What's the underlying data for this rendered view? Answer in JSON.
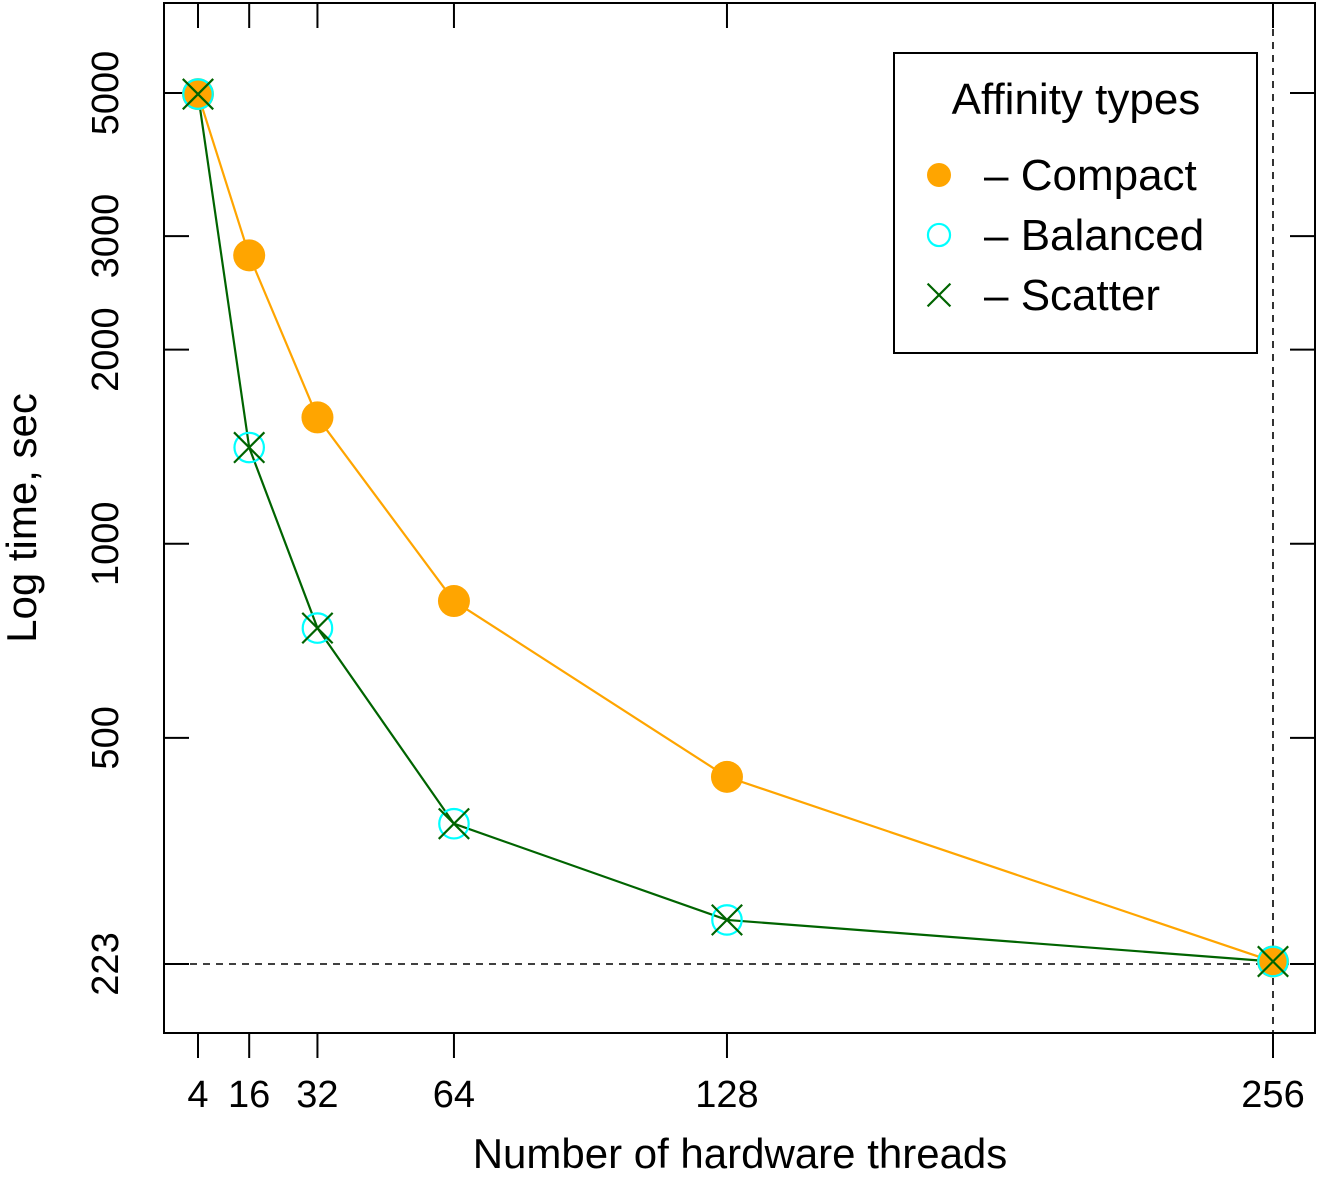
{
  "chart_data": {
    "type": "line",
    "xlabel": "Number of hardware threads",
    "ylabel": "Log time, sec",
    "y_scale": "log",
    "xlim": [
      0,
      260
    ],
    "ylim": [
      185,
      6600
    ],
    "x": [
      4,
      16,
      32,
      64,
      128,
      256
    ],
    "x_tick_labels": [
      "4",
      "16",
      "32",
      "64",
      "128",
      "256"
    ],
    "y_ticks": [
      223,
      500,
      1000,
      2000,
      3000,
      5000
    ],
    "y_tick_labels": [
      "223",
      "500",
      "1000",
      "2000",
      "3000",
      "5000"
    ],
    "reference_lines": {
      "x": 256,
      "y": 223,
      "style": "dashed"
    },
    "legend": {
      "title": "Affinity types",
      "position": "top-right"
    },
    "series": [
      {
        "name": "Compact",
        "label": "– Compact",
        "marker": "filled-circle",
        "color": "#FFA500",
        "values": [
          4980,
          2800,
          1570,
          815,
          435,
          225
        ]
      },
      {
        "name": "Balanced",
        "label": "– Balanced",
        "marker": "open-circle",
        "color": "#00FFFF",
        "values": [
          4980,
          1410,
          740,
          368,
          261,
          225
        ]
      },
      {
        "name": "Scatter",
        "label": "– Scatter",
        "marker": "x",
        "color": "#006400",
        "values": [
          4980,
          1410,
          740,
          368,
          261,
          225
        ]
      }
    ]
  }
}
